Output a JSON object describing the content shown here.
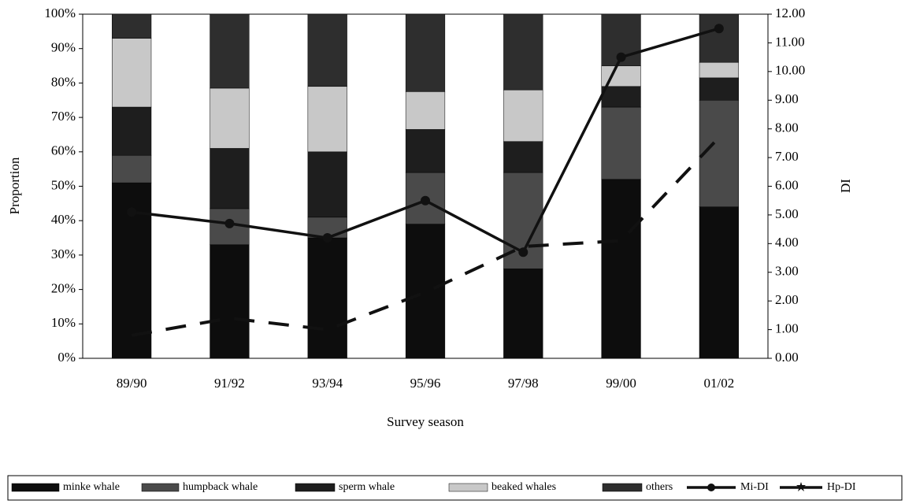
{
  "chart_data": {
    "type": "bar",
    "stacked": true,
    "x_label": "Survey season",
    "y_label": "Proportion",
    "y2_label": "DI",
    "categories": [
      "89/90",
      "91/92",
      "93/94",
      "95/96",
      "97/98",
      "99/00",
      "01/02"
    ],
    "ylim": [
      0,
      100
    ],
    "yticks": [
      {
        "value": 0,
        "label": "0%"
      },
      {
        "value": 10,
        "label": "10%"
      },
      {
        "value": 20,
        "label": "20%"
      },
      {
        "value": 30,
        "label": "30%"
      },
      {
        "value": 40,
        "label": "40%"
      },
      {
        "value": 50,
        "label": "50%"
      },
      {
        "value": 60,
        "label": "60%"
      },
      {
        "value": 70,
        "label": "70%"
      },
      {
        "value": 80,
        "label": "80%"
      },
      {
        "value": 90,
        "label": "90%"
      },
      {
        "value": 100,
        "label": "100%"
      }
    ],
    "y2lim": [
      0,
      12
    ],
    "y2ticks": [
      {
        "value": 0,
        "label": "0.00"
      },
      {
        "value": 1,
        "label": "1.00"
      },
      {
        "value": 2,
        "label": "2.00"
      },
      {
        "value": 3,
        "label": "3.00"
      },
      {
        "value": 4,
        "label": "4.00"
      },
      {
        "value": 5,
        "label": "5.00"
      },
      {
        "value": 6,
        "label": "6.00"
      },
      {
        "value": 7,
        "label": "7.00"
      },
      {
        "value": 8,
        "label": "8.00"
      },
      {
        "value": 9,
        "label": "9.00"
      },
      {
        "value": 10,
        "label": "10.00"
      },
      {
        "value": 11,
        "label": "11.00"
      },
      {
        "value": 12,
        "label": "12.00"
      }
    ],
    "series": [
      {
        "name": "minke whale",
        "color": "#0d0d0d",
        "values": [
          51,
          33,
          35,
          39,
          26,
          52,
          44
        ]
      },
      {
        "name": "humpback whale",
        "color": "#4a4a4a",
        "values": [
          8,
          10.5,
          6,
          15,
          28,
          21,
          31
        ]
      },
      {
        "name": "sperm whale",
        "color": "#1e1e1e",
        "values": [
          14,
          17.5,
          19,
          12.5,
          9,
          6,
          6.5
        ]
      },
      {
        "name": "beaked whales",
        "color": "#c8c8c8",
        "values": [
          20,
          17.5,
          19,
          11,
          15,
          6,
          4.5
        ]
      },
      {
        "name": "others",
        "color": "#2e2e2e",
        "values": [
          7,
          21.5,
          21,
          22.5,
          22,
          15,
          14
        ]
      },
      {
        "name": "Mi-DI",
        "type": "line",
        "axis": "y2",
        "color": "#111111",
        "marker": "circle",
        "values": [
          5.1,
          4.7,
          4.2,
          5.5,
          3.7,
          10.5,
          11.5
        ]
      },
      {
        "name": "Hp-DI",
        "type": "line",
        "axis": "y2",
        "color": "#111111",
        "dashed": true,
        "marker": "star",
        "values": [
          0.8,
          1.4,
          1.0,
          2.3,
          3.9,
          4.1,
          7.7
        ]
      }
    ]
  }
}
